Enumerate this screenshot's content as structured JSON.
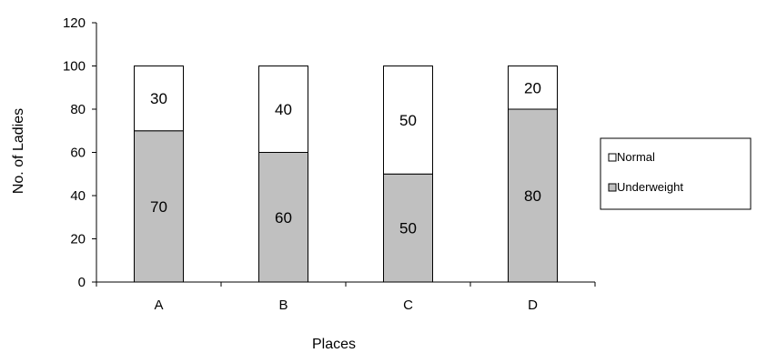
{
  "chart_data": {
    "type": "bar",
    "stacked": true,
    "title": "",
    "xlabel": "Places",
    "ylabel": "No. of Ladies",
    "categories": [
      "A",
      "B",
      "C",
      "D"
    ],
    "ylim": [
      0,
      120
    ],
    "yticks": [
      0,
      20,
      40,
      60,
      80,
      100,
      120
    ],
    "grid": false,
    "legend_position": "right",
    "series": [
      {
        "name": "Underweight",
        "values": [
          70,
          60,
          50,
          80
        ],
        "color": "#c0c0c0"
      },
      {
        "name": "Normal",
        "values": [
          30,
          40,
          50,
          20
        ],
        "color": "#ffffff"
      }
    ],
    "legend_order": [
      "Normal",
      "Underweight"
    ]
  }
}
